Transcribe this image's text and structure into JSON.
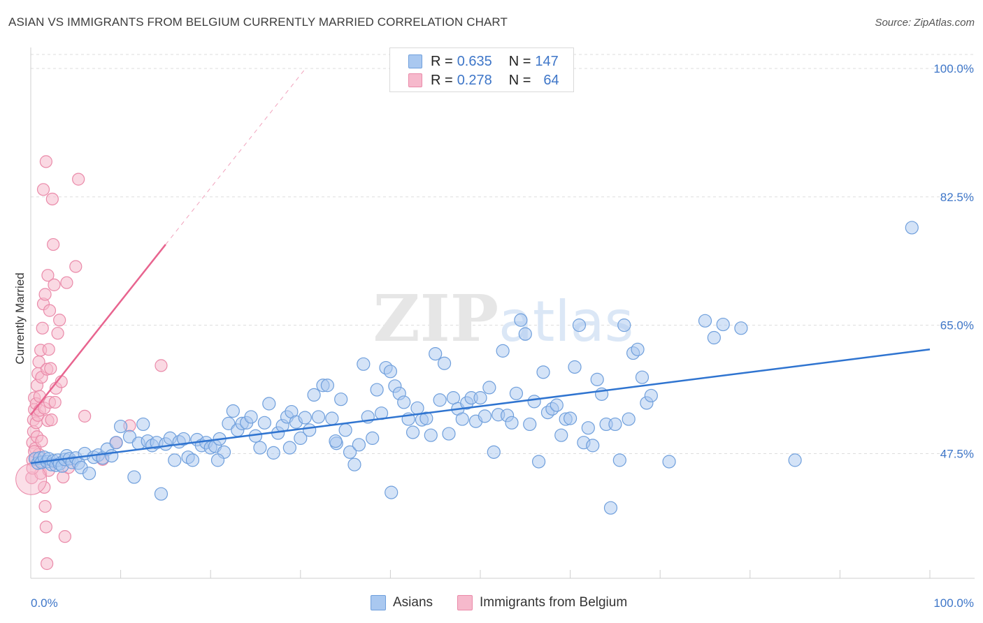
{
  "title": "ASIAN VS IMMIGRANTS FROM BELGIUM CURRENTLY MARRIED CORRELATION CHART",
  "source": "Source: ZipAtlas.com",
  "watermark": "ZIPatlas",
  "colors": {
    "asian_fill": "#a9c8f0",
    "asian_stroke": "#6f9fdc",
    "asian_line": "#2f74d0",
    "belgium_fill": "#f6b9cc",
    "belgium_stroke": "#ea8aa9",
    "belgium_line": "#e8648f",
    "tick_text": "#3e76c8"
  },
  "legend": {
    "rows": [
      {
        "r_label": "R =",
        "r_value": "0.635",
        "n_label": "N =",
        "n_value": "147",
        "color": "#a9c8f0"
      },
      {
        "r_label": "R =",
        "r_value": "0.278",
        "n_label": "N =",
        "n_value": "64",
        "color": "#f6b9cc"
      }
    ]
  },
  "bottom_legend": [
    "Asians",
    "Immigrants from Belgium"
  ],
  "chart_data": {
    "type": "scatter",
    "title": "ASIAN VS IMMIGRANTS FROM BELGIUM CURRENTLY MARRIED CORRELATION CHART",
    "xlabel": "",
    "ylabel": "Currently Married",
    "xlim": [
      0,
      100
    ],
    "ylim": [
      30.5,
      102
    ],
    "x_tick_labels": [
      "0.0%",
      "100.0%"
    ],
    "y_ticks": [
      47.5,
      65.0,
      82.5,
      100.0
    ],
    "y_tick_labels": [
      "47.5%",
      "65.0%",
      "82.5%",
      "100.0%"
    ],
    "grid": "horizontal dashed",
    "legend_position": "top-center",
    "series": [
      {
        "name": "Asians",
        "r": 0.635,
        "n": 147,
        "trend": {
          "x": [
            0,
            100
          ],
          "y": [
            46.2,
            61.7
          ]
        },
        "points": [
          [
            0.5,
            46.8
          ],
          [
            0.8,
            46.2
          ],
          [
            1.0,
            46.9
          ],
          [
            1.2,
            46.3
          ],
          [
            1.5,
            47.0
          ],
          [
            1.8,
            46.4
          ],
          [
            2.0,
            46.8
          ],
          [
            2.3,
            46.0
          ],
          [
            2.5,
            46.5
          ],
          [
            2.8,
            45.9
          ],
          [
            3.0,
            46.6
          ],
          [
            3.2,
            46.1
          ],
          [
            3.5,
            45.8
          ],
          [
            3.8,
            46.7
          ],
          [
            4.0,
            47.2
          ],
          [
            4.3,
            46.8
          ],
          [
            4.6,
            46.3
          ],
          [
            5.0,
            46.9
          ],
          [
            5.3,
            46.2
          ],
          [
            5.6,
            45.6
          ],
          [
            6.0,
            47.5
          ],
          [
            6.5,
            44.8
          ],
          [
            7.0,
            47.0
          ],
          [
            7.5,
            47.3
          ],
          [
            8.0,
            46.9
          ],
          [
            8.5,
            48.1
          ],
          [
            9.0,
            47.2
          ],
          [
            9.5,
            49.0
          ],
          [
            10.0,
            51.2
          ],
          [
            11.0,
            49.8
          ],
          [
            11.5,
            44.3
          ],
          [
            12.0,
            48.9
          ],
          [
            12.5,
            51.5
          ],
          [
            13.0,
            49.2
          ],
          [
            13.5,
            48.6
          ],
          [
            14.0,
            49.0
          ],
          [
            14.5,
            42.0
          ],
          [
            15.0,
            48.8
          ],
          [
            15.5,
            49.6
          ],
          [
            16.0,
            46.6
          ],
          [
            16.5,
            49.1
          ],
          [
            17.0,
            49.5
          ],
          [
            17.5,
            47.0
          ],
          [
            18.0,
            46.6
          ],
          [
            18.5,
            49.4
          ],
          [
            19.0,
            48.6
          ],
          [
            19.5,
            49.0
          ],
          [
            20.0,
            48.3
          ],
          [
            20.5,
            48.5
          ],
          [
            21.0,
            49.5
          ],
          [
            21.5,
            47.7
          ],
          [
            22.0,
            51.6
          ],
          [
            22.5,
            53.3
          ],
          [
            23.0,
            50.7
          ],
          [
            23.5,
            51.6
          ],
          [
            24.0,
            51.7
          ],
          [
            24.5,
            52.5
          ],
          [
            25.0,
            49.9
          ],
          [
            25.5,
            48.3
          ],
          [
            26.0,
            51.7
          ],
          [
            26.5,
            54.3
          ],
          [
            27.0,
            47.6
          ],
          [
            27.5,
            50.3
          ],
          [
            28.0,
            51.3
          ],
          [
            28.5,
            52.5
          ],
          [
            29.0,
            53.2
          ],
          [
            29.5,
            51.8
          ],
          [
            30.0,
            49.6
          ],
          [
            30.5,
            52.4
          ],
          [
            31.0,
            50.7
          ],
          [
            31.5,
            55.5
          ],
          [
            32.0,
            52.5
          ],
          [
            32.5,
            56.8
          ],
          [
            33.0,
            56.8
          ],
          [
            33.5,
            52.3
          ],
          [
            34.0,
            48.9
          ],
          [
            34.5,
            54.9
          ],
          [
            35.0,
            50.7
          ],
          [
            35.5,
            47.7
          ],
          [
            36.0,
            46.0
          ],
          [
            36.5,
            48.7
          ],
          [
            37.0,
            59.7
          ],
          [
            37.5,
            52.5
          ],
          [
            38.0,
            49.6
          ],
          [
            38.5,
            56.2
          ],
          [
            39.0,
            53.0
          ],
          [
            39.5,
            59.2
          ],
          [
            40.0,
            58.7
          ],
          [
            40.5,
            56.7
          ],
          [
            41.0,
            55.7
          ],
          [
            41.5,
            54.5
          ],
          [
            42.0,
            52.2
          ],
          [
            42.5,
            50.4
          ],
          [
            43.0,
            53.7
          ],
          [
            43.5,
            52.1
          ],
          [
            44.0,
            52.3
          ],
          [
            44.5,
            50.0
          ],
          [
            45.0,
            61.1
          ],
          [
            45.5,
            54.8
          ],
          [
            46.0,
            59.8
          ],
          [
            46.5,
            50.2
          ],
          [
            47.0,
            55.1
          ],
          [
            47.5,
            53.6
          ],
          [
            48.0,
            52.2
          ],
          [
            48.5,
            54.4
          ],
          [
            49.0,
            55.1
          ],
          [
            49.5,
            51.9
          ],
          [
            50.0,
            55.1
          ],
          [
            50.5,
            52.6
          ],
          [
            51.0,
            56.5
          ],
          [
            51.5,
            47.7
          ],
          [
            52.0,
            52.8
          ],
          [
            52.5,
            61.5
          ],
          [
            53.0,
            52.7
          ],
          [
            53.5,
            51.7
          ],
          [
            54.0,
            55.7
          ],
          [
            54.5,
            65.7
          ],
          [
            55.0,
            63.8
          ],
          [
            55.5,
            51.5
          ],
          [
            56.0,
            54.6
          ],
          [
            56.5,
            46.4
          ],
          [
            57.0,
            58.6
          ],
          [
            57.5,
            53.1
          ],
          [
            58.0,
            53.6
          ],
          [
            58.5,
            54.1
          ],
          [
            59.0,
            50.0
          ],
          [
            59.5,
            52.2
          ],
          [
            60.0,
            52.3
          ],
          [
            60.5,
            59.3
          ],
          [
            61.0,
            65.0
          ],
          [
            61.5,
            49.0
          ],
          [
            62.0,
            51.0
          ],
          [
            62.5,
            48.6
          ],
          [
            63.0,
            57.6
          ],
          [
            63.5,
            55.6
          ],
          [
            64.0,
            51.5
          ],
          [
            64.5,
            40.1
          ],
          [
            65.0,
            51.5
          ],
          [
            65.5,
            46.6
          ],
          [
            66.0,
            65.0
          ],
          [
            66.5,
            52.2
          ],
          [
            67.0,
            61.2
          ],
          [
            67.5,
            61.7
          ],
          [
            68.0,
            57.9
          ],
          [
            68.5,
            54.4
          ],
          [
            69.0,
            55.4
          ],
          [
            71.0,
            46.4
          ],
          [
            75.0,
            65.6
          ],
          [
            76.0,
            63.3
          ],
          [
            77.0,
            65.1
          ],
          [
            79.0,
            64.6
          ],
          [
            85.0,
            46.6
          ],
          [
            98.0,
            78.3
          ],
          [
            40.1,
            42.2
          ],
          [
            20.8,
            46.6
          ],
          [
            33.9,
            49.2
          ],
          [
            28.8,
            48.3
          ]
        ]
      },
      {
        "name": "Immigrants from Belgium",
        "r": 0.278,
        "n": 64,
        "trend": {
          "x": [
            0,
            15
          ],
          "y": [
            52.8,
            76.0
          ]
        },
        "trend_extension": {
          "x": [
            15,
            30.5
          ],
          "y": [
            76.0,
            99.9
          ]
        },
        "points": [
          [
            0.1,
            44.2
          ],
          [
            0.2,
            46.6
          ],
          [
            0.2,
            49.0
          ],
          [
            0.3,
            50.5
          ],
          [
            0.3,
            52.1
          ],
          [
            0.4,
            53.5
          ],
          [
            0.4,
            55.1
          ],
          [
            0.5,
            46.9
          ],
          [
            0.5,
            48.2
          ],
          [
            0.6,
            51.7
          ],
          [
            0.6,
            54.3
          ],
          [
            0.7,
            49.8
          ],
          [
            0.7,
            56.8
          ],
          [
            0.8,
            52.7
          ],
          [
            0.8,
            58.4
          ],
          [
            0.9,
            47.4
          ],
          [
            0.9,
            60.0
          ],
          [
            1.0,
            53.4
          ],
          [
            1.0,
            55.3
          ],
          [
            1.1,
            61.6
          ],
          [
            1.1,
            44.8
          ],
          [
            1.2,
            49.2
          ],
          [
            1.2,
            57.9
          ],
          [
            1.3,
            64.6
          ],
          [
            1.3,
            46.4
          ],
          [
            1.4,
            67.9
          ],
          [
            1.4,
            83.5
          ],
          [
            1.5,
            42.9
          ],
          [
            1.5,
            53.7
          ],
          [
            1.6,
            69.2
          ],
          [
            1.6,
            40.3
          ],
          [
            1.7,
            87.3
          ],
          [
            1.7,
            37.5
          ],
          [
            1.8,
            59.0
          ],
          [
            1.8,
            32.5
          ],
          [
            1.9,
            52.0
          ],
          [
            1.9,
            71.8
          ],
          [
            2.0,
            61.7
          ],
          [
            2.0,
            45.2
          ],
          [
            2.1,
            54.5
          ],
          [
            2.1,
            67.0
          ],
          [
            2.2,
            59.1
          ],
          [
            2.3,
            52.1
          ],
          [
            2.4,
            82.2
          ],
          [
            2.5,
            76.0
          ],
          [
            2.6,
            70.5
          ],
          [
            2.7,
            54.5
          ],
          [
            2.8,
            56.4
          ],
          [
            3.0,
            63.9
          ],
          [
            3.2,
            65.7
          ],
          [
            3.4,
            57.3
          ],
          [
            3.6,
            44.3
          ],
          [
            4.0,
            70.8
          ],
          [
            4.2,
            45.6
          ],
          [
            5.0,
            73.0
          ],
          [
            5.3,
            84.9
          ],
          [
            6.0,
            52.6
          ],
          [
            8.0,
            46.7
          ],
          [
            9.5,
            49.0
          ],
          [
            11.0,
            51.3
          ],
          [
            14.5,
            59.5
          ],
          [
            3.8,
            36.2
          ],
          [
            0.4,
            47.8
          ],
          [
            0.2,
            45.5
          ]
        ]
      }
    ]
  }
}
